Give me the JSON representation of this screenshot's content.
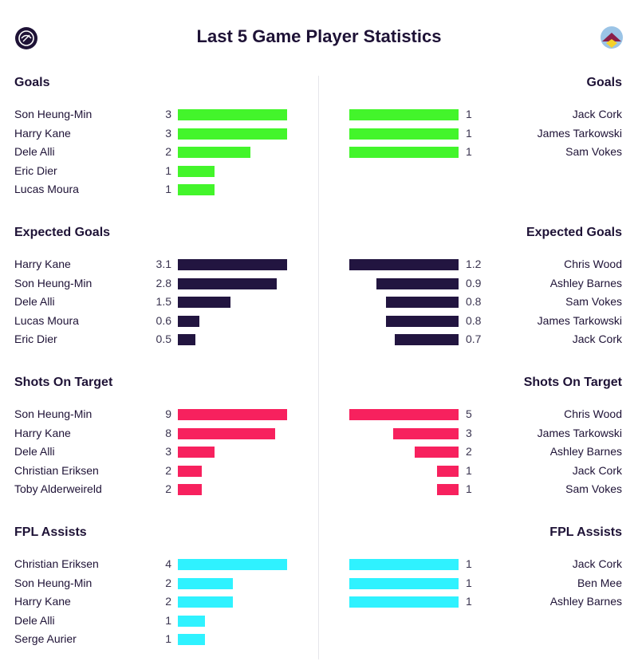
{
  "title": "Last 5 Game Player Statistics",
  "colors": {
    "goals": "#43f52b",
    "expected_goals": "#221540",
    "shots_on_target": "#f7215e",
    "fpl_assists": "#2ff2ff"
  },
  "chart_data": [
    {
      "type": "bar",
      "title": "Goals",
      "color_key": "goals",
      "left": {
        "max": 3,
        "rows": [
          {
            "name": "Son Heung-Min",
            "value": 3
          },
          {
            "name": "Harry Kane",
            "value": 3
          },
          {
            "name": "Dele Alli",
            "value": 2
          },
          {
            "name": "Eric Dier",
            "value": 1
          },
          {
            "name": "Lucas Moura",
            "value": 1
          }
        ]
      },
      "right": {
        "max": 1,
        "rows": [
          {
            "name": "Jack Cork",
            "value": 1
          },
          {
            "name": "James Tarkowski",
            "value": 1
          },
          {
            "name": "Sam Vokes",
            "value": 1
          }
        ]
      }
    },
    {
      "type": "bar",
      "title": "Expected Goals",
      "color_key": "expected_goals",
      "left": {
        "max": 3.1,
        "rows": [
          {
            "name": "Harry Kane",
            "value": 3.1
          },
          {
            "name": "Son Heung-Min",
            "value": 2.8
          },
          {
            "name": "Dele Alli",
            "value": 1.5
          },
          {
            "name": "Lucas Moura",
            "value": 0.6
          },
          {
            "name": "Eric Dier",
            "value": 0.5
          }
        ]
      },
      "right": {
        "max": 1.2,
        "rows": [
          {
            "name": "Chris Wood",
            "value": 1.2
          },
          {
            "name": "Ashley Barnes",
            "value": 0.9
          },
          {
            "name": "Sam Vokes",
            "value": 0.8
          },
          {
            "name": "James Tarkowski",
            "value": 0.8
          },
          {
            "name": "Jack Cork",
            "value": 0.7
          }
        ]
      }
    },
    {
      "type": "bar",
      "title": "Shots On Target",
      "color_key": "shots_on_target",
      "left": {
        "max": 9,
        "rows": [
          {
            "name": "Son Heung-Min",
            "value": 9
          },
          {
            "name": "Harry Kane",
            "value": 8
          },
          {
            "name": "Dele Alli",
            "value": 3
          },
          {
            "name": "Christian Eriksen",
            "value": 2
          },
          {
            "name": "Toby Alderweireld",
            "value": 2
          }
        ]
      },
      "right": {
        "max": 5,
        "rows": [
          {
            "name": "Chris Wood",
            "value": 5
          },
          {
            "name": "James Tarkowski",
            "value": 3
          },
          {
            "name": "Ashley Barnes",
            "value": 2
          },
          {
            "name": "Jack Cork",
            "value": 1
          },
          {
            "name": "Sam Vokes",
            "value": 1
          }
        ]
      }
    },
    {
      "type": "bar",
      "title": "FPL Assists",
      "color_key": "fpl_assists",
      "left": {
        "max": 4,
        "rows": [
          {
            "name": "Christian Eriksen",
            "value": 4
          },
          {
            "name": "Son Heung-Min",
            "value": 2
          },
          {
            "name": "Harry Kane",
            "value": 2
          },
          {
            "name": "Dele Alli",
            "value": 1
          },
          {
            "name": "Serge Aurier",
            "value": 1
          }
        ]
      },
      "right": {
        "max": 1,
        "rows": [
          {
            "name": "Jack Cork",
            "value": 1
          },
          {
            "name": "Ben Mee",
            "value": 1
          },
          {
            "name": "Ashley Barnes",
            "value": 1
          }
        ]
      }
    }
  ]
}
